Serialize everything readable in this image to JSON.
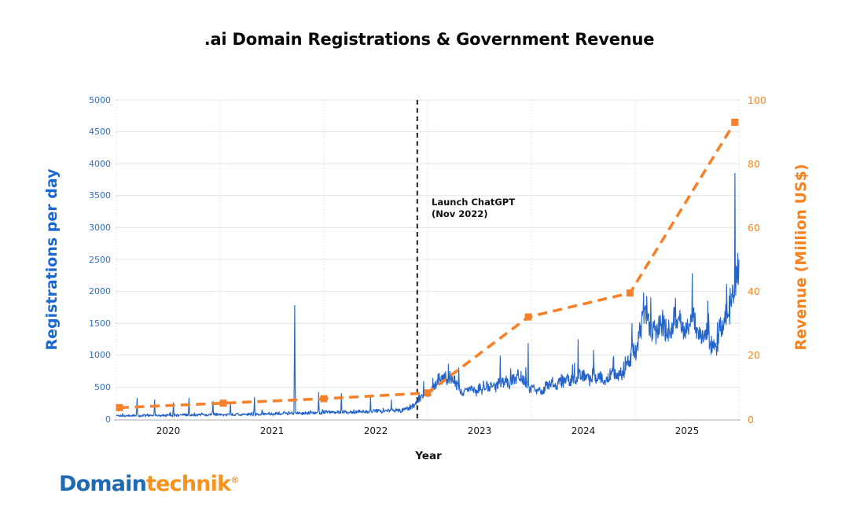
{
  "title": ".ai Domain Registrations & Government Revenue",
  "axes": {
    "left": {
      "title": "Registrations per day",
      "ticks": [
        0,
        500,
        1000,
        1500,
        2000,
        2500,
        3000,
        3500,
        4000,
        4500,
        5000
      ]
    },
    "right": {
      "title": "Revenue (Million US$)",
      "ticks": [
        0,
        20,
        40,
        60,
        80,
        100
      ]
    },
    "x": {
      "title": "Year",
      "ticks": [
        "2020",
        "2021",
        "2022",
        "2023",
        "2024",
        "2025"
      ]
    }
  },
  "annotation": {
    "line1": "Launch ChatGPT",
    "line2": "(Nov 2022)"
  },
  "logo": {
    "part1": "Domain",
    "part2": "technik",
    "registered": "®"
  },
  "colors": {
    "registrations_blue": "#2564c8",
    "blue_tick_text": "#2e6fca",
    "blue_axis_title": "#1a67d2",
    "revenue_orange": "#f5822b",
    "orange_tick_text": "#f6861f",
    "grid": "#e4e4e4",
    "grid_vertical": "#dcdcdc",
    "axis_line": "#c6c6c6",
    "event_line": "#1c1c1c"
  },
  "chart_data": {
    "type": "line",
    "title": ".ai Domain Registrations & Government Revenue",
    "xlabel": "Year",
    "x_range": [
      2020,
      2026
    ],
    "grid": true,
    "event_marker": {
      "x": 2022.9,
      "label": "Launch ChatGPT (Nov 2022)"
    },
    "series": [
      {
        "name": "Registrations per day",
        "axis": "left",
        "ylim": [
          0,
          5000
        ],
        "style": "solid-noisy-daily",
        "color": "#2564c8",
        "monthly_x_start": 2020.0,
        "monthly_step_years": 0.0833333,
        "monthly_baseline": [
          55,
          52,
          56,
          54,
          57,
          58,
          60,
          60,
          62,
          64,
          66,
          68,
          70,
          68,
          72,
          75,
          74,
          78,
          82,
          88,
          95,
          92,
          96,
          102,
          106,
          108,
          112,
          112,
          116,
          120,
          124,
          128,
          132,
          140,
          170,
          300,
          430,
          560,
          660,
          580,
          440,
          430,
          460,
          500,
          540,
          580,
          620,
          660,
          440,
          460,
          520,
          560,
          600,
          650,
          680,
          660,
          630,
          660,
          700,
          800,
          1100,
          1550,
          1450,
          1380,
          1450,
          1520,
          1500,
          1430,
          1300,
          1150,
          1400,
          1800,
          2400
        ],
        "spikes": [
          [
            2020.2,
            330
          ],
          [
            2020.37,
            300
          ],
          [
            2020.55,
            260
          ],
          [
            2020.7,
            330
          ],
          [
            2020.93,
            280
          ],
          [
            2021.1,
            260
          ],
          [
            2021.33,
            340
          ],
          [
            2021.72,
            1780
          ],
          [
            2021.95,
            420
          ],
          [
            2022.17,
            400
          ],
          [
            2022.45,
            345
          ],
          [
            2022.65,
            300
          ],
          [
            2022.83,
            230
          ],
          [
            2023.05,
            640
          ],
          [
            2023.2,
            860
          ],
          [
            2023.3,
            800
          ],
          [
            2023.7,
            985
          ],
          [
            2023.97,
            1185
          ],
          [
            2024.45,
            1245
          ],
          [
            2024.6,
            1080
          ],
          [
            2024.97,
            1495
          ],
          [
            2025.08,
            1980
          ],
          [
            2025.15,
            1900
          ],
          [
            2025.55,
            2280
          ],
          [
            2025.7,
            1850
          ],
          [
            2025.88,
            2110
          ],
          [
            2025.962,
            3850
          ],
          [
            2025.99,
            2600
          ]
        ],
        "end": [
          2026.0,
          2500
        ]
      },
      {
        "name": "Government revenue (Million US$)",
        "axis": "right",
        "ylim": [
          0,
          100
        ],
        "style": "dashed-line-square-markers",
        "color": "#f5822b",
        "x": [
          2020.03,
          2021.03,
          2022.0,
          2023.0,
          2023.97,
          2024.95,
          2025.96
        ],
        "values": [
          3.6,
          5.0,
          6.4,
          8.2,
          32,
          39.5,
          93
        ]
      }
    ]
  }
}
